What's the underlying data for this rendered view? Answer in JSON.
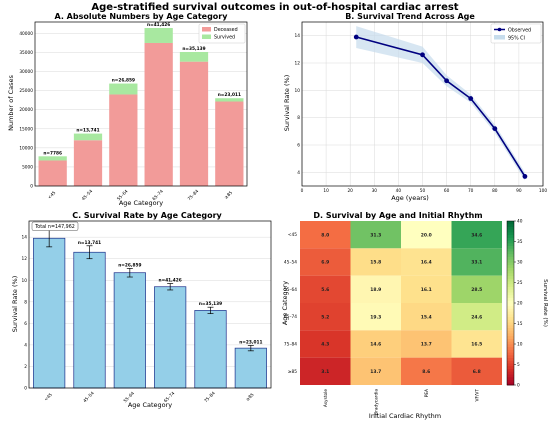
{
  "suptitle": "Age-stratified survival outcomes in out-of-hospital cardiac arrest",
  "colors": {
    "deceased": "#f29b99",
    "survived": "#a8e8a0",
    "line": "#000080",
    "band": "#c6dcec",
    "bar_blue": "#94cfe8",
    "bar_edge": "#1b2f8a"
  },
  "chart_data": [
    {
      "id": "A",
      "type": "bar",
      "stacked": true,
      "title": "A. Absolute Numbers by Age Category",
      "xlabel": "Age Category",
      "ylabel": "Number of Cases",
      "categories": [
        "<45",
        "45–54",
        "55–64",
        "65–74",
        "75–84",
        "≥85"
      ],
      "series": [
        {
          "name": "Deceased",
          "values": [
            6700,
            12000,
            24000,
            37500,
            32600,
            22150
          ]
        },
        {
          "name": "Survived",
          "values": [
            1086,
            1741,
            2859,
            3926,
            2539,
            861
          ]
        }
      ],
      "annotations": [
        "n=7786",
        "n=13,741",
        "n=26,859",
        "n=41,426",
        "n=35,139",
        "n=23,011"
      ],
      "ylim": [
        0,
        43000
      ],
      "yticks": [
        0,
        5000,
        10000,
        15000,
        20000,
        25000,
        30000,
        35000,
        40000
      ],
      "ytick_labels": [
        "0",
        "5000",
        "10000",
        "15000",
        "20000",
        "25000",
        "30000",
        "35000",
        "40000"
      ],
      "legend": "top-right",
      "grid": true
    },
    {
      "id": "B",
      "type": "line",
      "title": "B. Survival Trend Across Age",
      "xlabel": "Age (years)",
      "ylabel": "Survival Rate (%)",
      "series": [
        {
          "name": "Observed",
          "x": [
            22.5,
            50,
            60,
            70,
            80,
            92.5
          ],
          "y": [
            13.9,
            12.6,
            10.7,
            9.4,
            7.2,
            3.7
          ]
        },
        {
          "name": "95% CI",
          "x": [
            22.5,
            50,
            60,
            70,
            80,
            92.5
          ],
          "lower": [
            13.1,
            12.0,
            10.3,
            9.1,
            6.9,
            3.4
          ],
          "upper": [
            14.7,
            13.2,
            11.1,
            9.7,
            7.5,
            4.0
          ]
        }
      ],
      "xlim": [
        0,
        100
      ],
      "ylim": [
        3,
        15
      ],
      "xticks": [
        0,
        10,
        20,
        30,
        40,
        50,
        60,
        70,
        80,
        90,
        100
      ],
      "xtick_labels": [
        "0",
        "10",
        "20",
        "30",
        "40",
        "50",
        "60",
        "70",
        "80",
        "90",
        "100"
      ],
      "yticks": [
        4,
        6,
        8,
        10,
        12,
        14
      ],
      "ytick_labels": [
        "4",
        "6",
        "8",
        "10",
        "12",
        "14"
      ],
      "legend": "top-right",
      "grid": true
    },
    {
      "id": "C",
      "type": "bar",
      "title": "C. Survival Rate by Age Category",
      "xlabel": "Age Category",
      "ylabel": "Survival Rate (%)",
      "categories": [
        "<45",
        "45–54",
        "55–64",
        "65–74",
        "75–84",
        "≥85"
      ],
      "values": [
        13.9,
        12.6,
        10.7,
        9.4,
        7.2,
        3.7
      ],
      "errors": [
        0.8,
        0.6,
        0.4,
        0.3,
        0.3,
        0.25
      ],
      "annotations": [
        "n=7786",
        "n=13,741",
        "n=26,859",
        "n=41,426",
        "n=35,139",
        "n=23,011"
      ],
      "total_label": "Total n=147,962",
      "ylim": [
        0,
        15.5
      ],
      "yticks": [
        0,
        2,
        4,
        6,
        8,
        10,
        12,
        14
      ],
      "ytick_labels": [
        "0",
        "2",
        "4",
        "6",
        "8",
        "10",
        "12",
        "14"
      ],
      "grid": true
    },
    {
      "id": "D",
      "type": "heatmap",
      "title": "D. Survival by Age and Initial Rhythm",
      "xlabel": "Initial Cardiac Rhythm",
      "ylabel": "Age Category",
      "x": [
        "Asystole",
        "Bradycardia",
        "PEA",
        "VF/VT"
      ],
      "y": [
        "<45",
        "45–54",
        "55–64",
        "65–74",
        "75–84",
        "≥85"
      ],
      "values": [
        [
          8.0,
          31.3,
          20.0,
          34.6
        ],
        [
          6.9,
          15.8,
          16.4,
          33.1
        ],
        [
          5.6,
          18.9,
          16.1,
          28.5
        ],
        [
          5.2,
          19.3,
          15.4,
          24.6
        ],
        [
          4.3,
          14.6,
          13.7,
          16.5
        ],
        [
          3.1,
          13.7,
          8.6,
          6.8
        ]
      ],
      "cell_labels": [
        [
          "8.0",
          "31.3",
          "20.0",
          "34.6"
        ],
        [
          "6.9",
          "15.8",
          "16.4",
          "33.1"
        ],
        [
          "5.6",
          "18.9",
          "16.1",
          "28.5"
        ],
        [
          "5.2",
          "19.3",
          "15.4",
          "24.6"
        ],
        [
          "4.3",
          "14.6",
          "13.7",
          "16.5"
        ],
        [
          "3.1",
          "13.7",
          "8.6",
          "6.8"
        ]
      ],
      "colorbar_label": "Survival Rate (%)",
      "colorbar_range": [
        0,
        40
      ],
      "colorbar_ticks": [
        0,
        5,
        10,
        15,
        20,
        25,
        30,
        35,
        40
      ],
      "colorbar_tick_labels": [
        "0",
        "5",
        "10",
        "15",
        "20",
        "25",
        "30",
        "35",
        "40"
      ],
      "colormap": "RdYlGn"
    }
  ]
}
